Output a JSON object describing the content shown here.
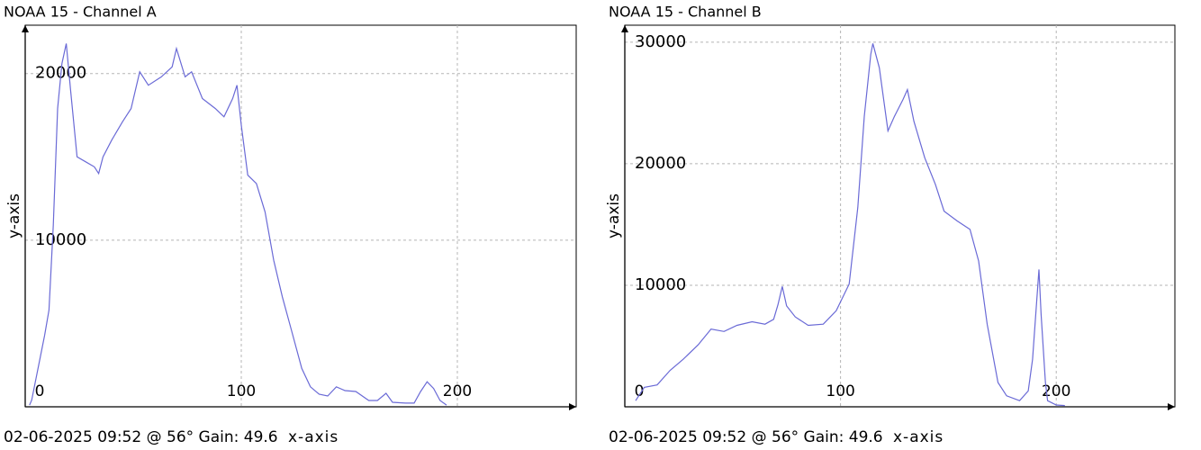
{
  "chart_data": [
    {
      "type": "line",
      "title": "NOAA 15 - Channel A",
      "xlabel": "x-axis",
      "ylabel": "y-axis",
      "footer": "02-06-2025 09:52 @ 56° Gain: 49.6",
      "color": "#6a6ad6",
      "xlim": [
        0,
        255
      ],
      "ylim": [
        0,
        22900
      ],
      "xticks": [
        0,
        100,
        200
      ],
      "yticks": [
        10000,
        20000
      ],
      "grid": true,
      "x": [
        2,
        3,
        7,
        9,
        11,
        13,
        15,
        17,
        19,
        21,
        24,
        28,
        32,
        34,
        36,
        40,
        45,
        49,
        53,
        57,
        63,
        68,
        70,
        74,
        77,
        82,
        88,
        92,
        96,
        98,
        100,
        103,
        107,
        111,
        115,
        119,
        123,
        128,
        132,
        136,
        140,
        144,
        148,
        153,
        159,
        163,
        167,
        170,
        176,
        180,
        183,
        186,
        189,
        192,
        195
      ],
      "values": [
        100,
        400,
        3000,
        4300,
        5800,
        10900,
        17900,
        20600,
        21800,
        19000,
        15000,
        14700,
        14400,
        14000,
        15000,
        16000,
        17100,
        17900,
        20100,
        19300,
        19800,
        20400,
        21500,
        19800,
        20100,
        18500,
        17900,
        17400,
        18500,
        19300,
        16900,
        13900,
        13400,
        11700,
        8800,
        6600,
        4700,
        2300,
        1200,
        760,
        650,
        1200,
        970,
        920,
        380,
        380,
        810,
        270,
        220,
        220,
        920,
        1500,
        1100,
        380,
        100
      ]
    },
    {
      "type": "line",
      "title": "NOAA 15 - Channel B",
      "xlabel": "x-axis",
      "ylabel": "y-axis",
      "footer": "02-06-2025 09:52 @ 56° Gain: 49.6",
      "color": "#6a6ad6",
      "xlim": [
        0,
        255
      ],
      "ylim": [
        0,
        31400
      ],
      "xticks": [
        0,
        100,
        200
      ],
      "yticks": [
        10000,
        20000,
        30000
      ],
      "grid": true,
      "x": [
        5,
        9,
        15,
        21,
        27,
        34,
        40,
        46,
        52,
        59,
        65,
        69,
        71,
        73,
        75,
        79,
        85,
        92,
        98,
        104,
        108,
        111,
        114,
        115,
        118,
        122,
        125,
        129,
        131,
        134,
        139,
        144,
        148,
        154,
        160,
        164,
        168,
        173,
        177,
        183,
        187,
        189,
        192,
        193,
        195,
        196,
        200,
        204
      ],
      "values": [
        500,
        1600,
        1800,
        3000,
        3900,
        5100,
        6400,
        6200,
        6700,
        7000,
        6800,
        7200,
        8400,
        9900,
        8300,
        7400,
        6700,
        6800,
        7900,
        10100,
        16400,
        23900,
        29000,
        29900,
        27900,
        22700,
        23900,
        25300,
        26100,
        23500,
        20500,
        18300,
        16100,
        15300,
        14600,
        12000,
        6800,
        2000,
        900,
        500,
        1300,
        3900,
        11300,
        7600,
        2000,
        500,
        150,
        100
      ]
    }
  ]
}
